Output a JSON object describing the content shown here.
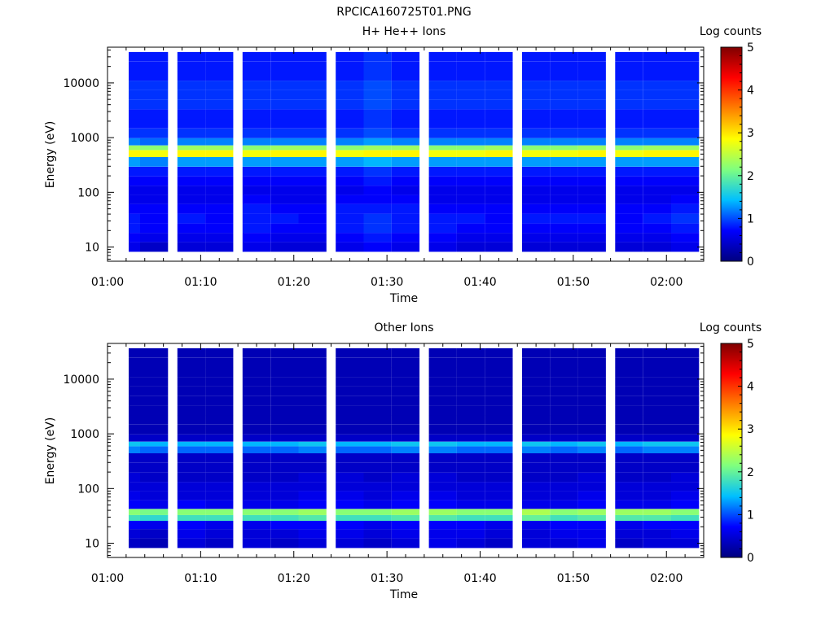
{
  "figure": {
    "title": "RPCICA160725T01.PNG"
  },
  "colorbar_palette": [
    "#00007f",
    "#0000ff",
    "#00bfff",
    "#7fff7f",
    "#ffff00",
    "#ff7f00",
    "#ff0000",
    "#7f0000"
  ],
  "chart_data": [
    {
      "type": "heatmap",
      "title": "H+ He++ Ions",
      "xlabel": "Time",
      "ylabel": "Energy (eV)",
      "x_ticks": [
        "01:00",
        "01:10",
        "01:20",
        "01:30",
        "01:40",
        "01:50",
        "02:00"
      ],
      "x_range": [
        "01:00",
        "02:04"
      ],
      "y_scale": "log",
      "y_ticks": [
        "10",
        "100",
        "1000",
        "10000"
      ],
      "y_range": [
        5.5,
        45000
      ],
      "colorbar": {
        "label": "Log counts",
        "ticks": [
          "0",
          "1",
          "2",
          "3",
          "4",
          "5"
        ],
        "range": [
          0,
          5
        ]
      },
      "time_bins": [
        "01:02",
        "01:05",
        "01:09",
        "01:12",
        "01:16",
        "01:19",
        "01:22",
        "01:26",
        "01:29",
        "01:32",
        "01:36",
        "01:39",
        "01:42",
        "01:46",
        "01:49",
        "01:52",
        "01:56",
        "01:59",
        "02:02"
      ],
      "energy_bins_ev": [
        10,
        15,
        22,
        33,
        50,
        75,
        110,
        160,
        240,
        360,
        540,
        650,
        800,
        1200,
        1800,
        2700,
        4000,
        6000,
        9000,
        13500,
        20000,
        30000
      ],
      "values": [
        [
          0.6,
          0.4,
          0.5,
          0.5,
          0.6,
          0.5,
          0.5,
          0.6,
          0.7,
          0.6,
          0.6,
          0.5,
          0.5,
          0.5,
          0.5,
          0.5,
          0.5,
          0.5,
          0.6
        ],
        [
          0.7,
          0.6,
          0.6,
          0.6,
          0.7,
          0.6,
          0.6,
          0.7,
          0.8,
          0.7,
          0.7,
          0.6,
          0.6,
          0.6,
          0.6,
          0.6,
          0.6,
          0.6,
          0.7
        ],
        [
          0.8,
          0.7,
          0.7,
          0.7,
          0.8,
          0.7,
          0.7,
          0.8,
          0.9,
          0.8,
          0.8,
          0.7,
          0.7,
          0.7,
          0.7,
          0.7,
          0.7,
          0.7,
          0.8
        ],
        [
          0.8,
          0.7,
          0.8,
          0.7,
          0.8,
          0.8,
          0.7,
          0.8,
          0.9,
          0.8,
          0.8,
          0.8,
          0.7,
          0.8,
          0.8,
          0.8,
          0.7,
          0.8,
          0.9
        ],
        [
          0.7,
          0.7,
          0.7,
          0.7,
          0.8,
          0.7,
          0.7,
          0.8,
          0.8,
          0.8,
          0.7,
          0.7,
          0.7,
          0.7,
          0.7,
          0.7,
          0.7,
          0.7,
          0.8
        ],
        [
          0.6,
          0.6,
          0.6,
          0.6,
          0.7,
          0.6,
          0.6,
          0.7,
          0.7,
          0.7,
          0.6,
          0.6,
          0.6,
          0.6,
          0.6,
          0.6,
          0.6,
          0.6,
          0.7
        ],
        [
          0.6,
          0.6,
          0.6,
          0.6,
          0.6,
          0.6,
          0.6,
          0.6,
          0.7,
          0.6,
          0.6,
          0.6,
          0.6,
          0.6,
          0.6,
          0.6,
          0.6,
          0.6,
          0.6
        ],
        [
          0.7,
          0.7,
          0.7,
          0.7,
          0.7,
          0.7,
          0.7,
          0.7,
          0.8,
          0.7,
          0.7,
          0.7,
          0.7,
          0.7,
          0.7,
          0.7,
          0.7,
          0.7,
          0.7
        ],
        [
          0.8,
          0.8,
          0.8,
          0.8,
          0.8,
          0.8,
          0.8,
          0.8,
          0.9,
          0.8,
          0.8,
          0.8,
          0.8,
          0.8,
          0.8,
          0.8,
          0.8,
          0.8,
          0.8
        ],
        [
          1.3,
          1.2,
          1.3,
          1.3,
          1.3,
          1.3,
          1.3,
          1.3,
          1.4,
          1.3,
          1.3,
          1.3,
          1.3,
          1.3,
          1.3,
          1.3,
          1.3,
          1.3,
          1.3
        ],
        [
          2.9,
          2.8,
          2.9,
          2.9,
          2.8,
          2.9,
          2.9,
          2.8,
          2.9,
          2.9,
          2.8,
          2.8,
          2.9,
          2.8,
          2.8,
          2.9,
          2.8,
          2.9,
          2.9
        ],
        [
          2.3,
          2.2,
          2.3,
          2.3,
          2.2,
          2.3,
          2.3,
          2.2,
          2.3,
          2.3,
          2.2,
          2.2,
          2.3,
          2.2,
          2.2,
          2.3,
          2.2,
          2.3,
          2.3
        ],
        [
          1.2,
          1.1,
          1.2,
          1.2,
          1.2,
          1.2,
          1.2,
          1.2,
          1.3,
          1.2,
          1.2,
          1.2,
          1.2,
          1.2,
          1.2,
          1.2,
          1.2,
          1.2,
          1.2
        ],
        [
          0.9,
          0.9,
          0.9,
          0.9,
          0.9,
          0.9,
          0.9,
          0.9,
          1.0,
          0.9,
          0.9,
          0.9,
          0.9,
          0.9,
          0.9,
          0.9,
          0.9,
          0.9,
          0.9
        ],
        [
          0.8,
          0.8,
          0.8,
          0.8,
          0.8,
          0.8,
          0.8,
          0.8,
          0.9,
          0.8,
          0.8,
          0.8,
          0.8,
          0.8,
          0.8,
          0.8,
          0.8,
          0.8,
          0.8
        ],
        [
          0.8,
          0.8,
          0.8,
          0.8,
          0.8,
          0.8,
          0.8,
          0.8,
          0.9,
          0.8,
          0.8,
          0.8,
          0.8,
          0.8,
          0.8,
          0.8,
          0.8,
          0.8,
          0.8
        ],
        [
          0.9,
          0.9,
          0.9,
          0.9,
          0.9,
          0.9,
          0.9,
          0.9,
          1.0,
          0.9,
          0.9,
          0.9,
          0.9,
          0.9,
          0.9,
          0.9,
          0.9,
          0.9,
          0.9
        ],
        [
          0.9,
          0.9,
          0.9,
          0.9,
          0.9,
          0.9,
          0.9,
          0.9,
          1.0,
          0.9,
          0.9,
          0.9,
          0.9,
          0.9,
          0.9,
          0.9,
          0.9,
          0.9,
          0.9
        ],
        [
          0.9,
          0.9,
          0.9,
          0.9,
          0.9,
          0.9,
          0.9,
          0.9,
          1.0,
          0.9,
          0.9,
          0.9,
          0.9,
          0.9,
          0.9,
          0.9,
          0.9,
          0.9,
          0.9
        ],
        [
          0.8,
          0.8,
          0.8,
          0.8,
          0.8,
          0.8,
          0.8,
          0.8,
          0.9,
          0.8,
          0.8,
          0.8,
          0.8,
          0.8,
          0.8,
          0.8,
          0.8,
          0.8,
          0.8
        ],
        [
          0.8,
          0.8,
          0.8,
          0.8,
          0.8,
          0.8,
          0.8,
          0.8,
          0.9,
          0.8,
          0.8,
          0.8,
          0.8,
          0.8,
          0.8,
          0.8,
          0.8,
          0.8,
          0.8
        ],
        [
          0.8,
          0.8,
          0.8,
          0.8,
          0.8,
          0.8,
          0.8,
          0.8,
          0.9,
          0.8,
          0.8,
          0.8,
          0.8,
          0.8,
          0.8,
          0.8,
          0.8,
          0.8,
          0.8
        ]
      ]
    },
    {
      "type": "heatmap",
      "title": "Other Ions",
      "xlabel": "Time",
      "ylabel": "Energy (eV)",
      "x_ticks": [
        "01:00",
        "01:10",
        "01:20",
        "01:30",
        "01:40",
        "01:50",
        "02:00"
      ],
      "x_range": [
        "01:00",
        "02:04"
      ],
      "y_scale": "log",
      "y_ticks": [
        "10",
        "100",
        "1000",
        "10000"
      ],
      "y_range": [
        5.5,
        45000
      ],
      "colorbar": {
        "label": "Log counts",
        "ticks": [
          "0",
          "1",
          "2",
          "3",
          "4",
          "5"
        ],
        "range": [
          0,
          5
        ]
      },
      "time_bins": [
        "01:02",
        "01:05",
        "01:09",
        "01:12",
        "01:16",
        "01:19",
        "01:22",
        "01:26",
        "01:29",
        "01:32",
        "01:36",
        "01:39",
        "01:42",
        "01:46",
        "01:49",
        "01:52",
        "01:56",
        "01:59",
        "02:02"
      ],
      "energy_bins_ev": [
        10,
        15,
        22,
        30,
        36,
        50,
        75,
        110,
        160,
        240,
        360,
        540,
        650,
        800,
        1200,
        1800,
        2700,
        4000,
        6000,
        9000,
        13500,
        20000,
        30000
      ],
      "values": [
        [
          0.4,
          0.3,
          0.5,
          0.4,
          0.5,
          0.4,
          0.5,
          0.5,
          0.4,
          0.5,
          0.6,
          0.5,
          0.4,
          0.5,
          0.5,
          0.6,
          0.4,
          0.5,
          0.5
        ],
        [
          0.5,
          0.4,
          0.6,
          0.5,
          0.5,
          0.5,
          0.6,
          0.6,
          0.5,
          0.6,
          0.6,
          0.6,
          0.5,
          0.5,
          0.6,
          0.6,
          0.5,
          0.5,
          0.6
        ],
        [
          0.7,
          0.6,
          0.7,
          0.6,
          0.6,
          0.7,
          0.7,
          0.7,
          0.6,
          0.7,
          0.7,
          0.7,
          0.6,
          0.6,
          0.7,
          0.7,
          0.6,
          0.7,
          0.7
        ],
        [
          1.8,
          1.7,
          1.8,
          1.8,
          1.8,
          1.8,
          1.9,
          1.8,
          1.8,
          1.9,
          1.9,
          1.8,
          1.8,
          2.0,
          1.8,
          1.9,
          1.9,
          1.9,
          1.8
        ],
        [
          2.2,
          2.1,
          2.2,
          2.2,
          2.2,
          2.2,
          2.3,
          2.2,
          2.2,
          2.3,
          2.3,
          2.2,
          2.2,
          2.4,
          2.2,
          2.3,
          2.3,
          2.3,
          2.2
        ],
        [
          0.7,
          0.6,
          0.7,
          0.6,
          0.6,
          0.6,
          0.7,
          0.7,
          0.6,
          0.7,
          0.7,
          0.6,
          0.6,
          0.6,
          0.6,
          0.7,
          0.6,
          0.6,
          0.7
        ],
        [
          0.6,
          0.5,
          0.5,
          0.5,
          0.5,
          0.5,
          0.6,
          0.6,
          0.5,
          0.6,
          0.6,
          0.5,
          0.5,
          0.5,
          0.5,
          0.6,
          0.5,
          0.5,
          0.6
        ],
        [
          0.5,
          0.5,
          0.5,
          0.5,
          0.5,
          0.5,
          0.5,
          0.5,
          0.5,
          0.5,
          0.5,
          0.5,
          0.5,
          0.5,
          0.5,
          0.5,
          0.5,
          0.5,
          0.5
        ],
        [
          0.5,
          0.4,
          0.4,
          0.4,
          0.4,
          0.4,
          0.5,
          0.5,
          0.4,
          0.5,
          0.5,
          0.4,
          0.4,
          0.4,
          0.4,
          0.5,
          0.4,
          0.4,
          0.5
        ],
        [
          0.4,
          0.4,
          0.4,
          0.4,
          0.4,
          0.4,
          0.4,
          0.4,
          0.4,
          0.4,
          0.4,
          0.4,
          0.4,
          0.4,
          0.4,
          0.4,
          0.4,
          0.4,
          0.4
        ],
        [
          0.4,
          0.4,
          0.4,
          0.4,
          0.4,
          0.4,
          0.4,
          0.4,
          0.4,
          0.4,
          0.4,
          0.4,
          0.4,
          0.4,
          0.4,
          0.4,
          0.4,
          0.4,
          0.4
        ],
        [
          1.2,
          1.1,
          1.1,
          1.1,
          1.1,
          1.1,
          1.2,
          1.1,
          1.1,
          1.2,
          1.2,
          1.1,
          1.1,
          1.2,
          1.1,
          1.2,
          1.1,
          1.2,
          1.2
        ],
        [
          1.5,
          1.4,
          1.4,
          1.4,
          1.4,
          1.4,
          1.5,
          1.4,
          1.4,
          1.5,
          1.5,
          1.4,
          1.4,
          1.5,
          1.4,
          1.5,
          1.4,
          1.5,
          1.5
        ],
        [
          0.4,
          0.4,
          0.4,
          0.4,
          0.4,
          0.4,
          0.4,
          0.4,
          0.4,
          0.4,
          0.4,
          0.4,
          0.4,
          0.4,
          0.4,
          0.4,
          0.4,
          0.4,
          0.4
        ],
        [
          0.3,
          0.3,
          0.3,
          0.3,
          0.3,
          0.3,
          0.3,
          0.3,
          0.3,
          0.3,
          0.3,
          0.3,
          0.3,
          0.3,
          0.3,
          0.3,
          0.3,
          0.3,
          0.3
        ],
        [
          0.3,
          0.3,
          0.3,
          0.3,
          0.3,
          0.3,
          0.3,
          0.3,
          0.3,
          0.3,
          0.3,
          0.3,
          0.3,
          0.3,
          0.3,
          0.3,
          0.3,
          0.3,
          0.3
        ],
        [
          0.3,
          0.3,
          0.3,
          0.3,
          0.3,
          0.3,
          0.3,
          0.3,
          0.3,
          0.3,
          0.3,
          0.3,
          0.3,
          0.3,
          0.3,
          0.3,
          0.3,
          0.3,
          0.3
        ],
        [
          0.3,
          0.3,
          0.3,
          0.3,
          0.3,
          0.3,
          0.3,
          0.3,
          0.3,
          0.3,
          0.3,
          0.3,
          0.3,
          0.3,
          0.3,
          0.3,
          0.3,
          0.3,
          0.3
        ],
        [
          0.3,
          0.3,
          0.3,
          0.3,
          0.3,
          0.3,
          0.3,
          0.3,
          0.3,
          0.3,
          0.3,
          0.3,
          0.3,
          0.3,
          0.3,
          0.3,
          0.3,
          0.3,
          0.3
        ],
        [
          0.3,
          0.3,
          0.3,
          0.3,
          0.3,
          0.3,
          0.3,
          0.3,
          0.3,
          0.3,
          0.3,
          0.3,
          0.3,
          0.3,
          0.3,
          0.3,
          0.3,
          0.3,
          0.3
        ],
        [
          0.3,
          0.3,
          0.3,
          0.3,
          0.3,
          0.3,
          0.3,
          0.3,
          0.3,
          0.3,
          0.3,
          0.3,
          0.3,
          0.3,
          0.3,
          0.3,
          0.3,
          0.3,
          0.3
        ],
        [
          0.3,
          0.3,
          0.3,
          0.3,
          0.3,
          0.3,
          0.3,
          0.3,
          0.3,
          0.3,
          0.3,
          0.3,
          0.3,
          0.3,
          0.3,
          0.3,
          0.3,
          0.3,
          0.3
        ],
        [
          0.3,
          0.3,
          0.3,
          0.3,
          0.3,
          0.3,
          0.3,
          0.3,
          0.3,
          0.3,
          0.3,
          0.3,
          0.3,
          0.3,
          0.3,
          0.3,
          0.3,
          0.3,
          0.3
        ]
      ]
    }
  ]
}
